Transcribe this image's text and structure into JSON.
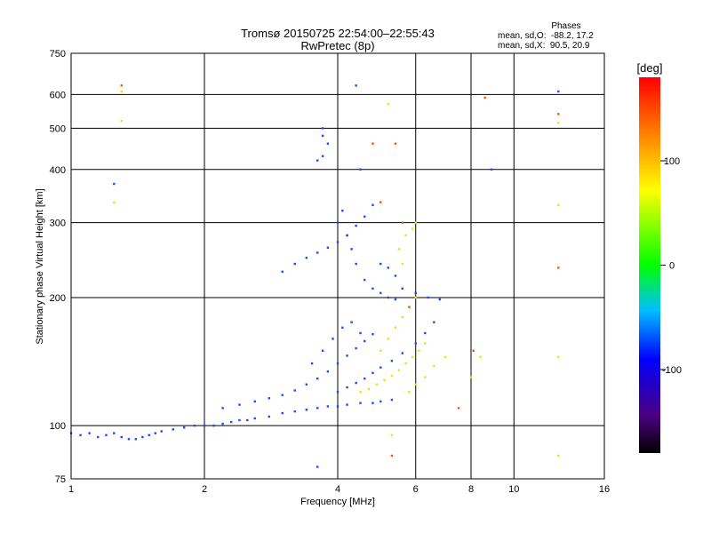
{
  "chart_data": {
    "type": "scatter",
    "title": "Tromsø 20150725 22:54:00–22:55:43",
    "subtitle": "RwPretec (8p)",
    "xlabel": "Frequency [MHz]",
    "ylabel": "Stationary phase Virtual Height [km]",
    "x_scale": "log",
    "y_scale": "log",
    "xlim": [
      1,
      16
    ],
    "ylim": [
      75,
      750
    ],
    "x_ticks": [
      1,
      2,
      4,
      6,
      8,
      10,
      16
    ],
    "y_ticks": [
      75,
      100,
      200,
      300,
      400,
      500,
      600,
      750
    ],
    "grid": true,
    "phases_block": {
      "title": "Phases",
      "line1": "mean, sd,O:  -88.2, 17.2",
      "line2": "mean, sd,X:  90.5, 20.9"
    },
    "colorbar": {
      "label": "[deg]",
      "range": [
        -180,
        180
      ],
      "ticks": [
        100,
        0,
        -100
      ]
    },
    "series": [
      {
        "color_class": "blue (phase ≈ -90 deg)",
        "points": [
          [
            1.0,
            96
          ],
          [
            1.05,
            95
          ],
          [
            1.1,
            96
          ],
          [
            1.15,
            94
          ],
          [
            1.2,
            95
          ],
          [
            1.25,
            96
          ],
          [
            1.3,
            94
          ],
          [
            1.35,
            93
          ],
          [
            1.4,
            93
          ],
          [
            1.45,
            94
          ],
          [
            1.5,
            95
          ],
          [
            1.55,
            96
          ],
          [
            1.6,
            97
          ],
          [
            1.7,
            98
          ],
          [
            1.8,
            99
          ],
          [
            1.9,
            100
          ],
          [
            2.0,
            100
          ],
          [
            2.1,
            100
          ],
          [
            2.2,
            101
          ],
          [
            2.3,
            102
          ],
          [
            2.4,
            103
          ],
          [
            2.5,
            103
          ],
          [
            2.6,
            104
          ],
          [
            2.8,
            105
          ],
          [
            3.0,
            107
          ],
          [
            3.2,
            108
          ],
          [
            3.4,
            109
          ],
          [
            3.6,
            110
          ],
          [
            3.8,
            111
          ],
          [
            4.0,
            111
          ],
          [
            4.2,
            112
          ],
          [
            4.5,
            113
          ],
          [
            4.8,
            113
          ],
          [
            5.0,
            114
          ],
          [
            5.3,
            115
          ],
          [
            2.2,
            110
          ],
          [
            2.4,
            112
          ],
          [
            2.6,
            114
          ],
          [
            2.8,
            116
          ],
          [
            3.0,
            118
          ],
          [
            3.2,
            121
          ],
          [
            3.4,
            125
          ],
          [
            3.6,
            129
          ],
          [
            3.8,
            134
          ],
          [
            4.0,
            140
          ],
          [
            4.2,
            146
          ],
          [
            4.4,
            152
          ],
          [
            4.6,
            158
          ],
          [
            4.8,
            164
          ],
          [
            4.0,
            120
          ],
          [
            4.2,
            123
          ],
          [
            4.4,
            126
          ],
          [
            4.6,
            129
          ],
          [
            4.8,
            133
          ],
          [
            5.0,
            137
          ],
          [
            5.3,
            142
          ],
          [
            5.6,
            148
          ],
          [
            6.0,
            156
          ],
          [
            6.3,
            165
          ],
          [
            6.6,
            175
          ],
          [
            3.0,
            230
          ],
          [
            3.2,
            240
          ],
          [
            3.4,
            248
          ],
          [
            3.6,
            255
          ],
          [
            3.8,
            262
          ],
          [
            4.0,
            270
          ],
          [
            4.2,
            280
          ],
          [
            4.4,
            295
          ],
          [
            4.6,
            310
          ],
          [
            4.8,
            330
          ],
          [
            4.0,
            300
          ],
          [
            4.1,
            320
          ],
          [
            4.2,
            280
          ],
          [
            4.3,
            260
          ],
          [
            4.4,
            240
          ],
          [
            4.6,
            220
          ],
          [
            4.8,
            210
          ],
          [
            5.0,
            205
          ],
          [
            5.2,
            200
          ],
          [
            5.4,
            198
          ],
          [
            3.7,
            430
          ],
          [
            3.7,
            480
          ],
          [
            3.7,
            500
          ],
          [
            3.8,
            460
          ],
          [
            3.6,
            420
          ],
          [
            5.0,
            240
          ],
          [
            5.2,
            235
          ],
          [
            5.4,
            225
          ],
          [
            5.6,
            210
          ],
          [
            6.0,
            205
          ],
          [
            6.4,
            200
          ],
          [
            6.8,
            198
          ],
          [
            3.5,
            140
          ],
          [
            3.7,
            150
          ],
          [
            3.9,
            160
          ],
          [
            4.1,
            170
          ],
          [
            4.3,
            175
          ],
          [
            4.5,
            165
          ],
          [
            1.25,
            370
          ],
          [
            4.5,
            400
          ],
          [
            8.9,
            400
          ],
          [
            12.6,
            610
          ],
          [
            4.4,
            630
          ],
          [
            3.6,
            80
          ]
        ]
      },
      {
        "color_class": "yellow (phase ≈ +100 deg)",
        "points": [
          [
            4.5,
            120
          ],
          [
            4.7,
            122
          ],
          [
            4.9,
            125
          ],
          [
            5.1,
            128
          ],
          [
            5.3,
            131
          ],
          [
            5.5,
            135
          ],
          [
            5.7,
            140
          ],
          [
            5.9,
            145
          ],
          [
            6.1,
            150
          ],
          [
            6.3,
            156
          ],
          [
            5.0,
            150
          ],
          [
            5.2,
            160
          ],
          [
            5.4,
            170
          ],
          [
            5.6,
            180
          ],
          [
            5.8,
            190
          ],
          [
            6.0,
            200
          ],
          [
            5.5,
            260
          ],
          [
            5.7,
            280
          ],
          [
            5.9,
            290
          ],
          [
            6.0,
            300
          ],
          [
            5.6,
            240
          ],
          [
            5.8,
            120
          ],
          [
            6.0,
            125
          ],
          [
            6.3,
            130
          ],
          [
            6.6,
            138
          ],
          [
            7.0,
            145
          ],
          [
            5.2,
            570
          ],
          [
            1.3,
            610
          ],
          [
            1.3,
            520
          ],
          [
            12.6,
            330
          ],
          [
            12.6,
            515
          ],
          [
            12.6,
            85
          ],
          [
            12.6,
            145
          ],
          [
            5.3,
            95
          ],
          [
            8.0,
            130
          ],
          [
            8.4,
            145
          ],
          [
            1.25,
            335
          ]
        ]
      },
      {
        "color_class": "orange/red (phase ≈ +150 to +180 deg)",
        "points": [
          [
            1.3,
            630
          ],
          [
            4.8,
            460
          ],
          [
            5.0,
            335
          ],
          [
            5.6,
            300
          ],
          [
            5.8,
            190
          ],
          [
            8.6,
            590
          ],
          [
            12.6,
            540
          ],
          [
            12.6,
            235
          ],
          [
            5.3,
            85
          ],
          [
            7.5,
            110
          ],
          [
            8.1,
            150
          ],
          [
            5.4,
            460
          ]
        ]
      }
    ]
  }
}
